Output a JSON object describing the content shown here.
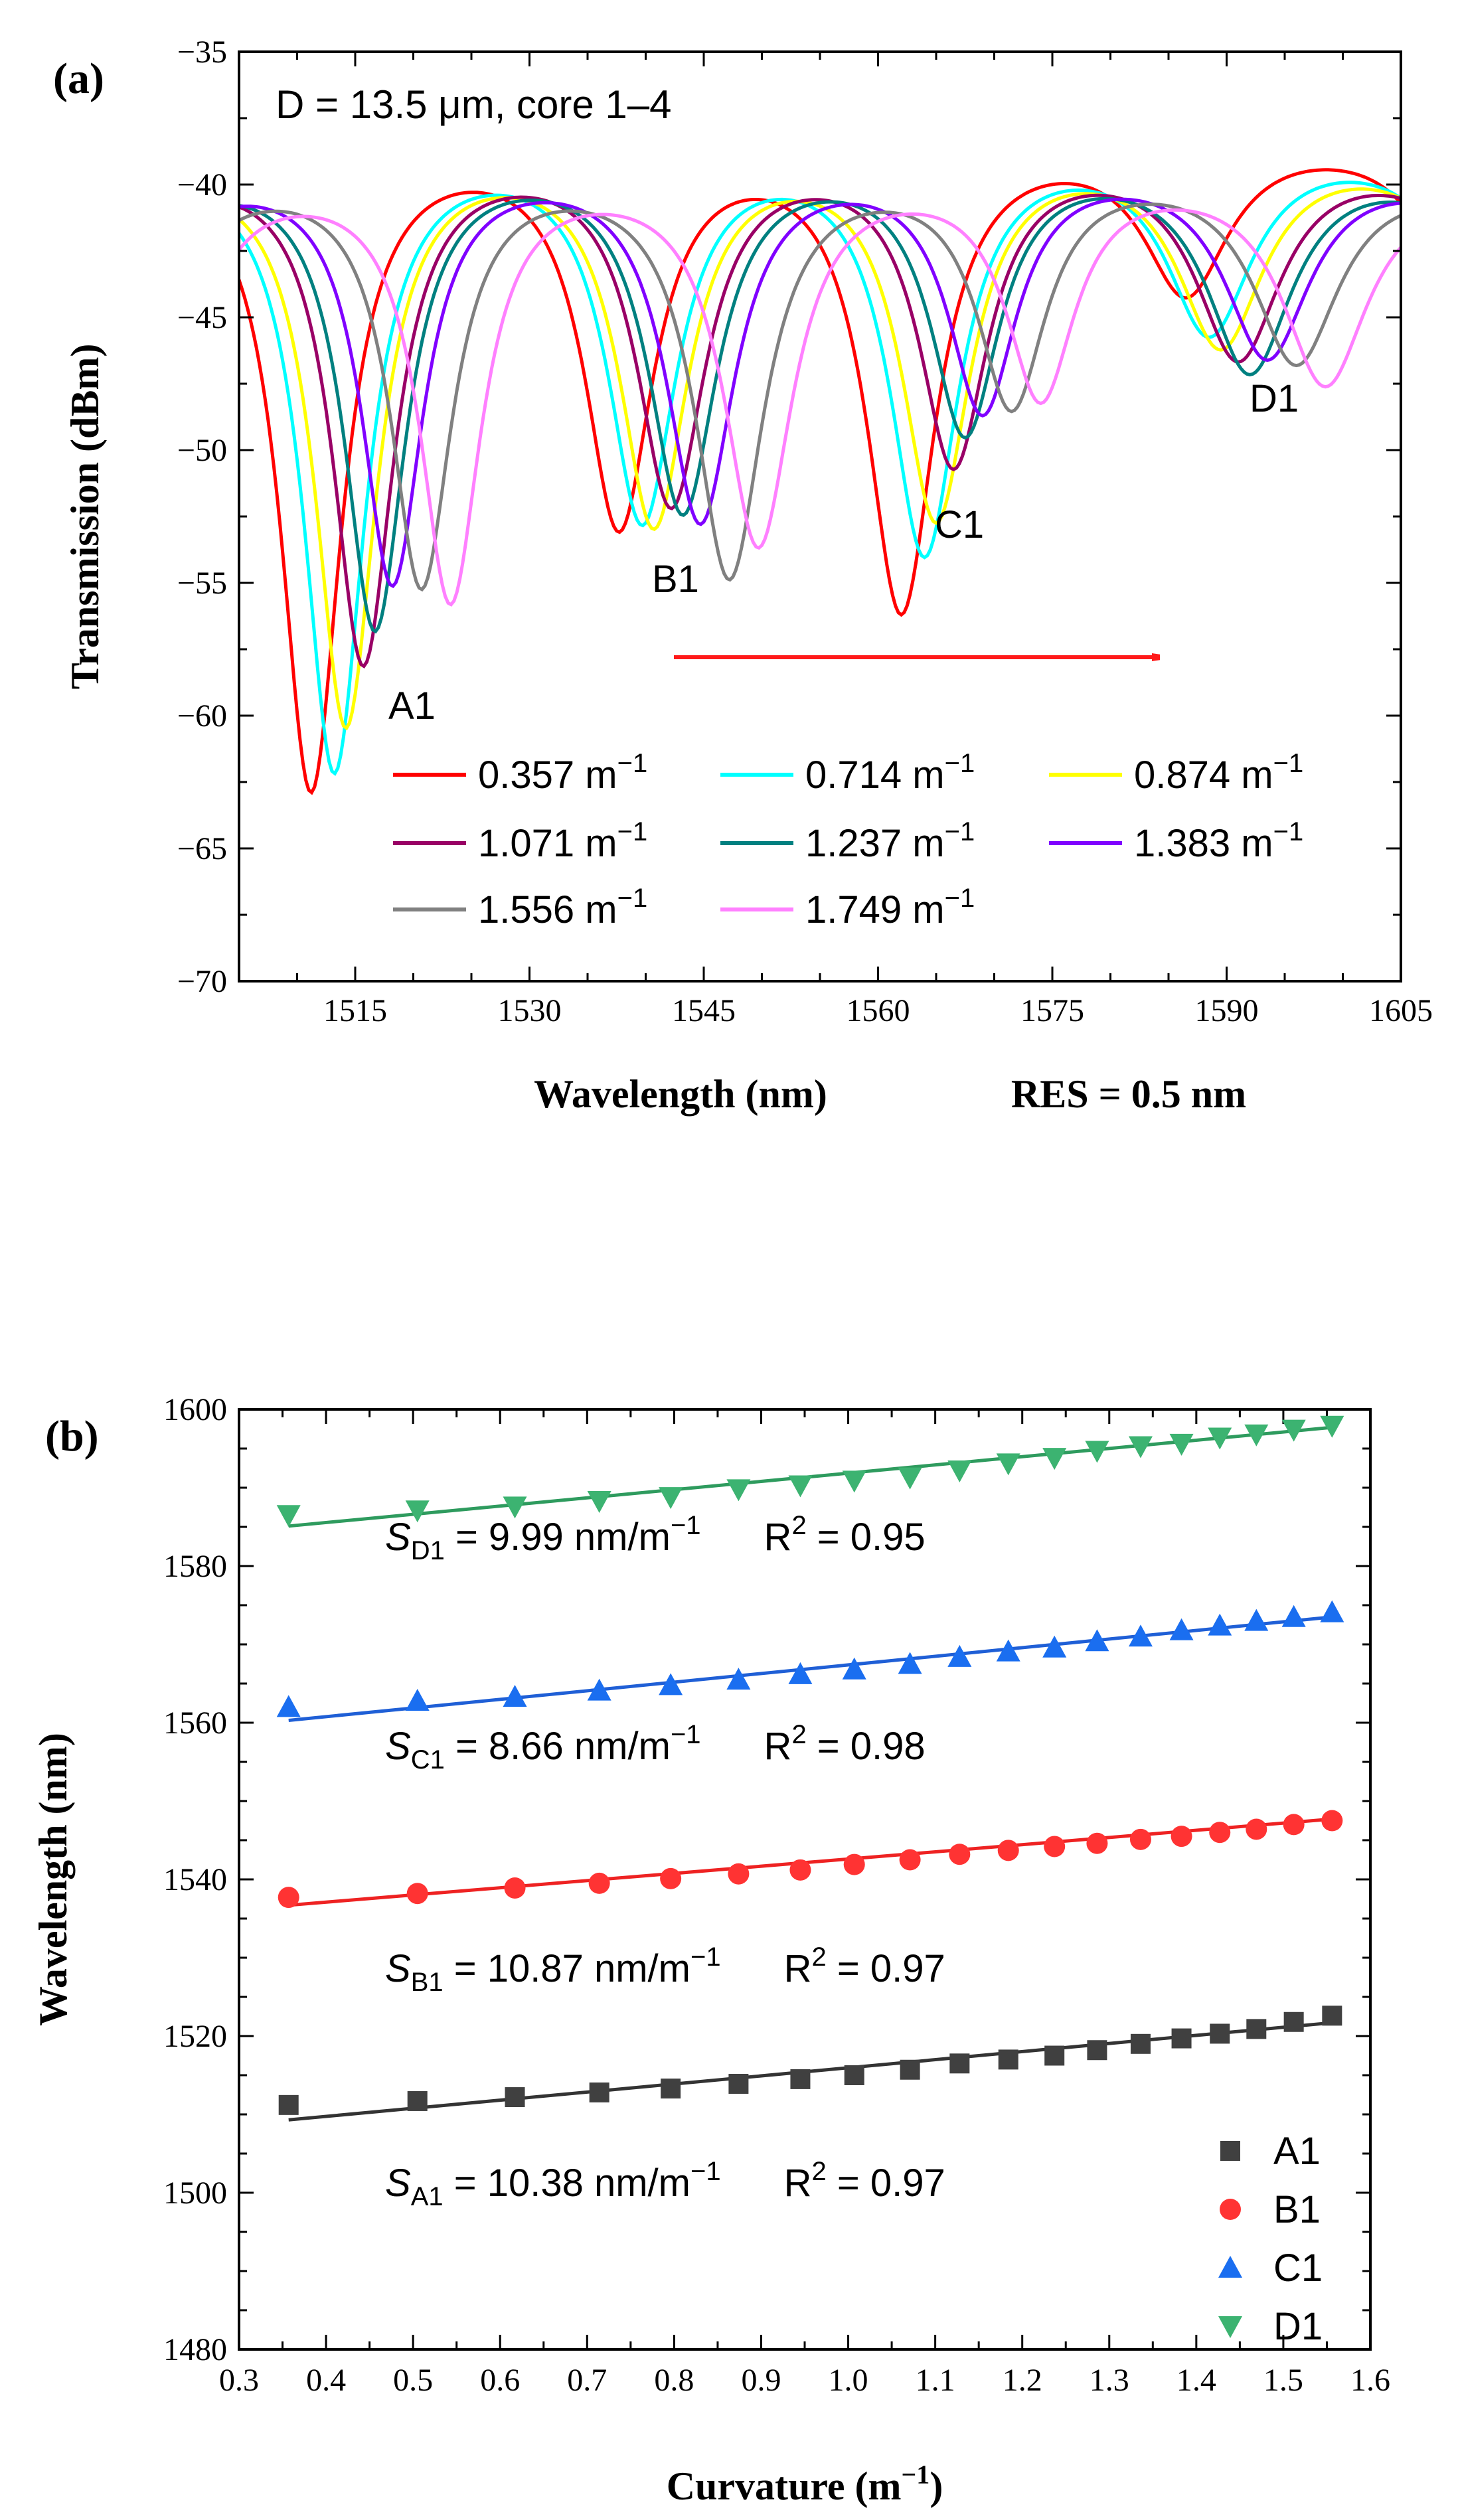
{
  "panel_a": {
    "panel_label": "(a)",
    "annotation": "D = 13.5 μm, core 1–4",
    "res_label": "RES = 0.5 nm",
    "arrow_color": "#ff1a1a",
    "dip_labels": [
      "A1",
      "B1",
      "C1",
      "D1"
    ]
  },
  "panel_b": {
    "panel_label": "(b)",
    "fits": [
      {
        "sym": "S",
        "sub": "D1",
        "text": " = 9.99 nm/m",
        "sup": "−1",
        "r2": "R",
        "r2sup": "2",
        "r2val": " = 0.95"
      },
      {
        "sym": "S",
        "sub": "C1",
        "text": " = 8.66 nm/m",
        "sup": "−1",
        "r2": "R",
        "r2sup": "2",
        "r2val": " = 0.98"
      },
      {
        "sym": "S",
        "sub": "B1",
        "text": " = 10.87 nm/m",
        "sup": "−1",
        "r2": "R",
        "r2sup": "2",
        "r2val": " = 0.97"
      },
      {
        "sym": "S",
        "sub": "A1",
        "text": " = 10.38 nm/m",
        "sup": "−1",
        "r2": "R",
        "r2sup": "2",
        "r2val": " = 0.97"
      }
    ]
  },
  "chart_data": [
    {
      "type": "line",
      "title": "",
      "xlabel": "Wavelength (nm)",
      "ylabel": "Transmission (dBm)",
      "xlim": [
        1505,
        1605
      ],
      "ylim": [
        -70,
        -35
      ],
      "xticks": [
        1515,
        1530,
        1545,
        1560,
        1575,
        1590,
        1605
      ],
      "yticks": [
        -35,
        -40,
        -45,
        -50,
        -55,
        -60,
        -65,
        -70
      ],
      "legend_position": "bottom-center",
      "legend_columns": 3,
      "series": [
        {
          "name": "0.357 m",
          "name_sup": "−1",
          "color": "#ff0000",
          "shift": 0.0,
          "a1_depth": -62.2,
          "b1_depth": -52.2,
          "c1_depth": -55.5,
          "d1_depth": -43.5
        },
        {
          "name": "0.714 m",
          "name_sup": "−1",
          "color": "#00ffff",
          "shift": 2.0,
          "a1_depth": -61.5,
          "b1_depth": -52.0,
          "c1_depth": -53.3,
          "d1_depth": -45.0
        },
        {
          "name": "0.874 m",
          "name_sup": "−1",
          "color": "#ffff00",
          "shift": 3.0,
          "a1_depth": -59.8,
          "b1_depth": -52.2,
          "c1_depth": -52.0,
          "d1_depth": -45.5
        },
        {
          "name": "1.071 m",
          "name_sup": "−1",
          "color": "#990066",
          "shift": 4.5,
          "a1_depth": -57.5,
          "b1_depth": -51.5,
          "c1_depth": -50.0,
          "d1_depth": -46.0
        },
        {
          "name": "1.237 m",
          "name_sup": "−1",
          "color": "#008080",
          "shift": 5.5,
          "a1_depth": -56.2,
          "b1_depth": -51.8,
          "c1_depth": -48.8,
          "d1_depth": -46.5
        },
        {
          "name": "1.383 m",
          "name_sup": "−1",
          "color": "#8000ff",
          "shift": 7.0,
          "a1_depth": -54.5,
          "b1_depth": -52.2,
          "c1_depth": -48.0,
          "d1_depth": -46.0
        },
        {
          "name": "1.556 m",
          "name_sup": "−1",
          "color": "#808080",
          "shift": 9.5,
          "a1_depth": -54.6,
          "b1_depth": -54.3,
          "c1_depth": -47.8,
          "d1_depth": -46.2
        },
        {
          "name": "1.749 m",
          "name_sup": "−1",
          "color": "#ff80ff",
          "shift": 12.0,
          "a1_depth": -55.2,
          "b1_depth": -53.1,
          "c1_depth": -47.5,
          "d1_depth": -47.0
        }
      ],
      "base_dips_nm": {
        "A1": 1511.2,
        "B1": 1537.7,
        "C1": 1562.0,
        "D1": 1586.5
      }
    },
    {
      "type": "scatter",
      "title": "",
      "xlabel": "Curvature (m",
      "xlabel_sup": "−1",
      "xlabel_end": ")",
      "ylabel": "Wavelength (nm)",
      "xlim": [
        0.3,
        1.6
      ],
      "ylim": [
        1480,
        1600
      ],
      "xticks": [
        0.3,
        0.4,
        0.5,
        0.6,
        0.7,
        0.8,
        0.9,
        1.0,
        1.1,
        1.2,
        1.3,
        1.4,
        1.5,
        1.6
      ],
      "yticks": [
        1480,
        1500,
        1520,
        1540,
        1560,
        1580,
        1600
      ],
      "legend_position": "bottom-right",
      "x": [
        0.357,
        0.505,
        0.617,
        0.714,
        0.796,
        0.874,
        0.945,
        1.007,
        1.071,
        1.128,
        1.184,
        1.237,
        1.286,
        1.336,
        1.383,
        1.427,
        1.469,
        1.512,
        1.556
      ],
      "series": [
        {
          "name": "A1",
          "marker": "square",
          "color": "#404040",
          "fit_color": "#333333",
          "values": [
            1511.2,
            1511.7,
            1512.2,
            1512.8,
            1513.3,
            1513.9,
            1514.5,
            1515.0,
            1515.7,
            1516.5,
            1517.0,
            1517.5,
            1518.2,
            1519.0,
            1519.7,
            1520.3,
            1520.9,
            1521.8,
            1522.6
          ],
          "fit": [
            1509.3,
            1521.7
          ]
        },
        {
          "name": "B1",
          "marker": "circle",
          "color": "#ff3333",
          "fit_color": "#ee2222",
          "values": [
            1537.7,
            1538.2,
            1538.9,
            1539.5,
            1540.1,
            1540.7,
            1541.2,
            1541.9,
            1542.5,
            1543.2,
            1543.7,
            1544.2,
            1544.6,
            1545.1,
            1545.5,
            1546.0,
            1546.4,
            1547.0,
            1547.5
          ],
          "fit": [
            1536.7,
            1547.7
          ]
        },
        {
          "name": "C1",
          "marker": "triangle-up",
          "color": "#1a6ef0",
          "fit_color": "#1f5fd6",
          "values": [
            1562.0,
            1562.8,
            1563.3,
            1564.1,
            1564.8,
            1565.5,
            1566.2,
            1566.8,
            1567.5,
            1568.4,
            1569.1,
            1569.6,
            1570.4,
            1571.0,
            1571.8,
            1572.4,
            1573.0,
            1573.5,
            1574.1
          ],
          "fit": [
            1560.3,
            1573.5
          ]
        },
        {
          "name": "D1",
          "marker": "triangle-down",
          "color": "#3cb371",
          "fit_color": "#2e9b5e",
          "values": [
            1586.5,
            1587.1,
            1587.6,
            1588.3,
            1588.8,
            1589.8,
            1590.3,
            1590.9,
            1591.3,
            1592.2,
            1593.1,
            1593.8,
            1594.7,
            1595.3,
            1595.6,
            1596.4,
            1596.8,
            1597.4,
            1597.9
          ],
          "fit": [
            1585.1,
            1597.7
          ]
        }
      ]
    }
  ]
}
